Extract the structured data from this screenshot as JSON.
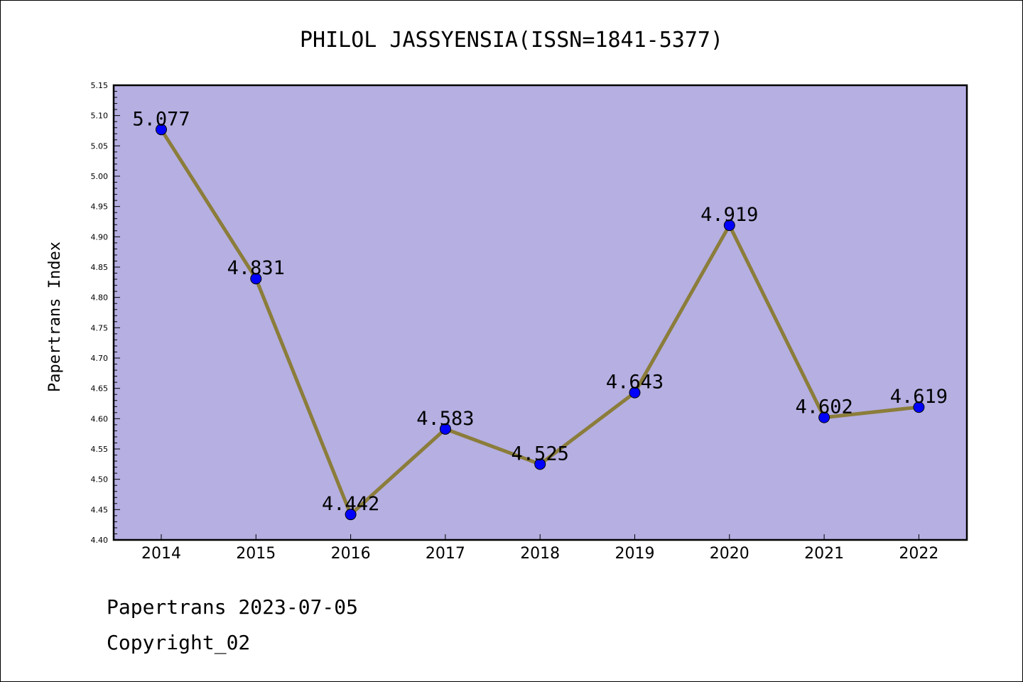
{
  "chart_data": {
    "type": "line",
    "title": "PHILOL JASSYENSIA(ISSN=1841-5377)",
    "xlabel": "",
    "ylabel": "Papertrans Index",
    "x": [
      "2014",
      "2015",
      "2016",
      "2017",
      "2018",
      "2019",
      "2020",
      "2021",
      "2022"
    ],
    "series": [
      {
        "values": [
          5.077,
          4.831,
          4.442,
          4.583,
          4.525,
          4.643,
          4.919,
          4.602,
          4.619
        ],
        "labels": [
          "5.077",
          "4.831",
          "4.442",
          "4.583",
          "4.525",
          "4.643",
          "4.919",
          "4.602",
          "4.619"
        ],
        "line_color": "#8b7d3a",
        "marker_color": "#0000ff"
      }
    ],
    "ylim": [
      4.4,
      5.15
    ],
    "yticks": [
      "4.40",
      "4.45",
      "4.50",
      "4.55",
      "4.60",
      "4.65",
      "4.70",
      "4.75",
      "4.80",
      "4.85",
      "4.90",
      "4.95",
      "5.00",
      "5.05",
      "5.10",
      "5.15"
    ],
    "plot_background": "#b5afe2",
    "grid": false,
    "legend": "none"
  },
  "footer": {
    "line1": "Papertrans 2023-07-05",
    "line2": "Copyright_02"
  }
}
